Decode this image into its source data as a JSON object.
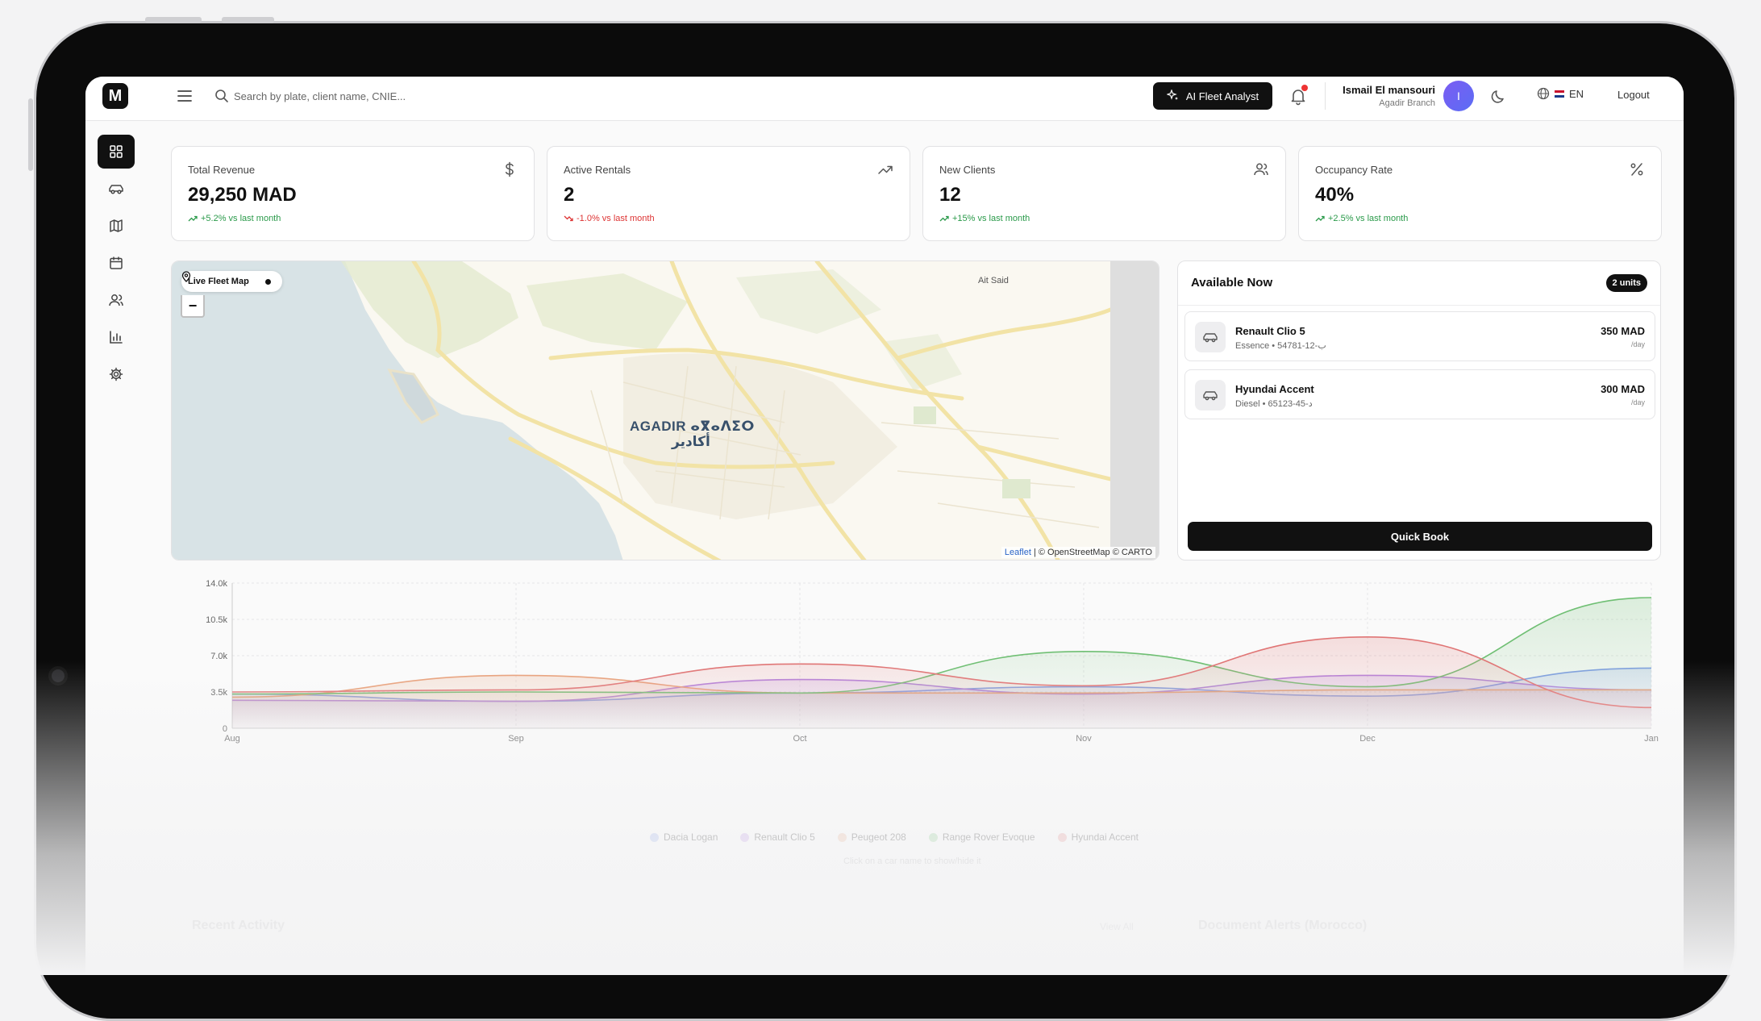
{
  "header": {
    "logo": "M",
    "search_placeholder": "Search by plate, client name, CNIE...",
    "ai_button": "AI Fleet Analyst",
    "user_name": "Ismail El mansouri",
    "user_branch": "Agadir Branch",
    "avatar_initial": "I",
    "language": "EN",
    "logout": "Logout"
  },
  "stats": [
    {
      "label": "Total Revenue",
      "value": "29,250 MAD",
      "trend": "+5.2% vs last month",
      "direction": "up",
      "icon": "dollar-icon"
    },
    {
      "label": "Active Rentals",
      "value": "2",
      "trend": "-1.0% vs last month",
      "direction": "down",
      "icon": "trending-up-icon"
    },
    {
      "label": "New Clients",
      "value": "12",
      "trend": "+15% vs last month",
      "direction": "up",
      "icon": "users-icon"
    },
    {
      "label": "Occupancy Rate",
      "value": "40%",
      "trend": "+2.5% vs last month",
      "direction": "up",
      "icon": "percent-icon"
    }
  ],
  "map": {
    "badge": "Live Fleet Map",
    "city": "AGADIR ⴰⴳⴰⴷⵉⵔ",
    "city_ar": "أكادير",
    "town": "Ait Said",
    "attribution_leaflet": "Leaflet",
    "attribution_rest": "| © OpenStreetMap © CARTO"
  },
  "available": {
    "title": "Available Now",
    "badge": "2 units",
    "cars": [
      {
        "name": "Renault Clio 5",
        "details": "Essence • 54781-ب-12",
        "price": "350 MAD",
        "per": "/day"
      },
      {
        "name": "Hyundai Accent",
        "details": "Diesel • 65123-د-45",
        "price": "300 MAD",
        "per": "/day"
      }
    ],
    "quick_book": "Quick Book"
  },
  "chart_data": {
    "type": "area",
    "categories": [
      "Aug",
      "Sep",
      "Oct",
      "Nov",
      "Dec",
      "Jan"
    ],
    "y_ticks": [
      "0",
      "3.5k",
      "7.0k",
      "10.5k",
      "14.0k"
    ],
    "ylim": [
      0,
      14000
    ],
    "grid": true,
    "legend_position": "bottom",
    "series": [
      {
        "name": "Dacia Logan",
        "color": "#7f9be8",
        "values": [
          3300,
          2600,
          3400,
          4000,
          3100,
          5800
        ]
      },
      {
        "name": "Renault Clio 5",
        "color": "#b07fe0",
        "values": [
          2700,
          2600,
          4700,
          3300,
          5100,
          3700
        ]
      },
      {
        "name": "Peugeot 208",
        "color": "#e8a07a",
        "values": [
          3000,
          5100,
          3400,
          3400,
          3700,
          3700
        ]
      },
      {
        "name": "Range Rover Evoque",
        "color": "#6fbf73",
        "values": [
          3300,
          3500,
          3400,
          7400,
          4000,
          12600
        ]
      },
      {
        "name": "Hyundai Accent",
        "color": "#e07575",
        "values": [
          3500,
          3700,
          6200,
          4100,
          8800,
          2000
        ]
      }
    ],
    "hint": "Click on a car name to show/hide it"
  },
  "bottom": {
    "recent_activity": "Recent Activity",
    "view_all": "View All",
    "document_alerts": "Document Alerts (Morocco)"
  }
}
